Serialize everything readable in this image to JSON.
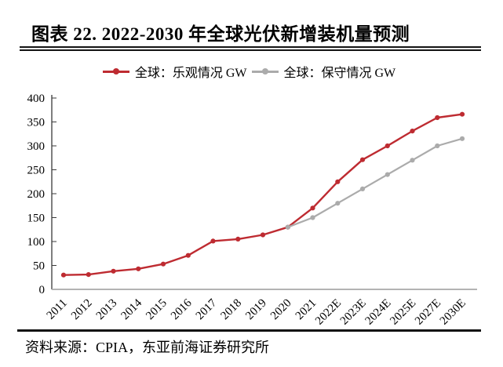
{
  "header": {
    "title": "图表 22. 2022-2030 年全球光伏新增装机量预测"
  },
  "footer": {
    "source": "资料来源：CPIA，东亚前海证券研究所"
  },
  "colors": {
    "optimistic_red": "#BE2B31",
    "conservative_gray": "#ABABAB",
    "x_axis_line": "#A8A8A8",
    "y_axis_line": "#3A3A3A"
  },
  "chart_data": {
    "type": "line",
    "title": "2022-2030 年全球光伏新增装机量预测",
    "categories": [
      "2011",
      "2012",
      "2013",
      "2014",
      "2015",
      "2016",
      "2017",
      "2018",
      "2019",
      "2020",
      "2021",
      "2022E",
      "2023E",
      "2024E",
      "2025E",
      "2027E",
      "2030E"
    ],
    "series": [
      {
        "name": "全球：乐观情况 GW",
        "color": "#BE2B31",
        "values": [
          30,
          31,
          38,
          43,
          53,
          71,
          101,
          105,
          114,
          130,
          170,
          225,
          271,
          300,
          331,
          359,
          366
        ]
      },
      {
        "name": "全球：保守情况 GW",
        "color": "#ABABAB",
        "values": [
          null,
          null,
          null,
          null,
          null,
          null,
          null,
          null,
          null,
          130,
          150,
          180,
          210,
          240,
          270,
          300,
          315
        ]
      }
    ],
    "xlabel": "",
    "ylabel": "",
    "ylim": [
      0,
      400
    ],
    "ytick_step": 50,
    "grid": false,
    "legend_position": "top-center",
    "x_label_rotation": -45,
    "marker": "circle"
  }
}
